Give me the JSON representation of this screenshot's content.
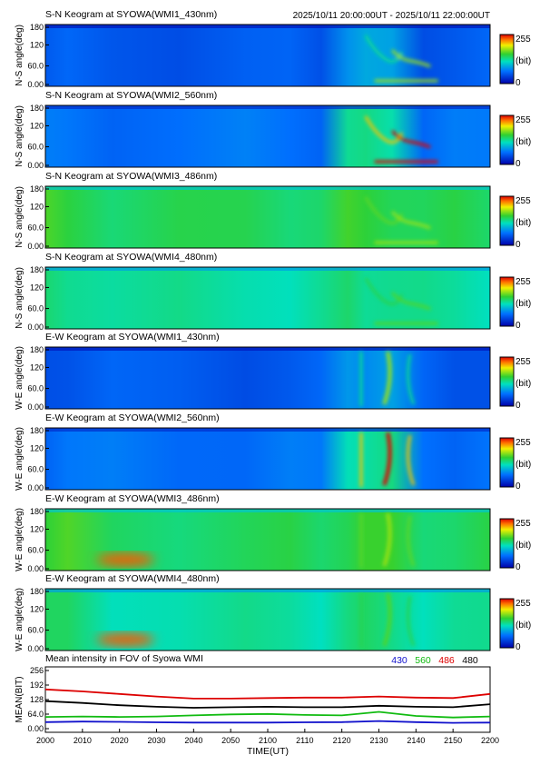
{
  "header": {
    "time_range": "2025/10/11 20:00:00UT - 2025/10/11 22:00:00UT"
  },
  "colorbar": {
    "max_label": "255",
    "unit_label": "(bit)",
    "min_label": "0"
  },
  "keograms": [
    {
      "title": "S-N Keogram at SYOWA(WMI1_430nm)",
      "ylabel": "N-S angle(deg)",
      "yticks": [
        "180",
        "120",
        "60.0",
        "0.00"
      ],
      "base": 0.2,
      "aurora": 0.5
    },
    {
      "title": "S-N Keogram at SYOWA(WMI2_560nm)",
      "ylabel": "N-S angle(deg)",
      "yticks": [
        "180",
        "120",
        "60.0",
        "0.00"
      ],
      "base": 0.25,
      "aurora": 0.95
    },
    {
      "title": "S-N Keogram at SYOWA(WMI3_486nm)",
      "ylabel": "N-S angle(deg)",
      "yticks": [
        "180",
        "120",
        "60.0",
        "0.00"
      ],
      "base": 0.55,
      "aurora": 0.15
    },
    {
      "title": "S-N Keogram at SYOWA(WMI4_480nm)",
      "ylabel": "N-S angle(deg)",
      "yticks": [
        "180",
        "120",
        "60.0",
        "0.00"
      ],
      "base": 0.48,
      "aurora": 0.15
    },
    {
      "title": "E-W Keogram at SYOWA(WMI1_430nm)",
      "ylabel": "W-E angle(deg)",
      "yticks": [
        "180",
        "120",
        "60.0",
        "0.00"
      ],
      "base": 0.2,
      "aurora": 0.5
    },
    {
      "title": "E-W Keogram at SYOWA(WMI2_560nm)",
      "ylabel": "W-E angle(deg)",
      "yticks": [
        "180",
        "120",
        "60.0",
        "0.00"
      ],
      "base": 0.25,
      "aurora": 0.95
    },
    {
      "title": "E-W Keogram at SYOWA(WMI3_486nm)",
      "ylabel": "W-E angle(deg)",
      "yticks": [
        "180",
        "120",
        "60.0",
        "0.00"
      ],
      "base": 0.55,
      "aurora": 0.15
    },
    {
      "title": "E-W Keogram at SYOWA(WMI4_480nm)",
      "ylabel": "W-E angle(deg)",
      "yticks": [
        "180",
        "120",
        "60.0",
        "0.00"
      ],
      "base": 0.48,
      "aurora": 0.15
    }
  ],
  "chart_data": {
    "type": "line",
    "title": "Mean intensity in FOV of Syowa WMI",
    "xlabel": "TIME(UT)",
    "ylabel": "MEAN(BIT)",
    "xlim": [
      2000,
      2200
    ],
    "ylim": [
      0,
      256
    ],
    "xticks": [
      "2000",
      "2010",
      "2020",
      "2030",
      "2040",
      "2050",
      "2100",
      "2110",
      "2120",
      "2130",
      "2140",
      "2150",
      "2200"
    ],
    "yticks": [
      "256",
      "192",
      "128",
      "64.0",
      "0.00"
    ],
    "x": [
      "2000",
      "2010",
      "2020",
      "2030",
      "2040",
      "2050",
      "2100",
      "2110",
      "2120",
      "2130",
      "2140",
      "2150",
      "2200"
    ],
    "series": [
      {
        "name": "430",
        "color": "#1111cc",
        "values": [
          40,
          42,
          41,
          39,
          38,
          38,
          38,
          39,
          40,
          44,
          40,
          37,
          38
        ]
      },
      {
        "name": "560",
        "color": "#11bb11",
        "values": [
          60,
          62,
          60,
          62,
          66,
          70,
          72,
          68,
          66,
          80,
          64,
          58,
          62
        ]
      },
      {
        "name": "486",
        "color": "#dd0000",
        "values": [
          168,
          160,
          150,
          140,
          132,
          132,
          134,
          136,
          136,
          140,
          136,
          134,
          150
        ]
      },
      {
        "name": "480",
        "color": "#000000",
        "values": [
          122,
          115,
          106,
          100,
          96,
          98,
          100,
          98,
          98,
          104,
          100,
          98,
          110
        ]
      }
    ]
  }
}
